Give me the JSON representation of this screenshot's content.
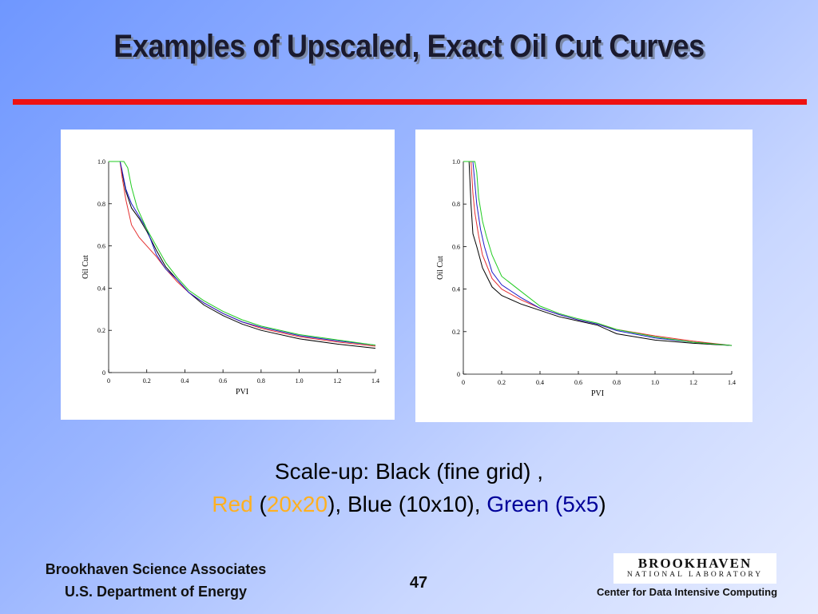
{
  "slide": {
    "title": "Examples of Upscaled,  Exact Oil Cut Curves",
    "caption_line1": "Scale-up:  Black (fine grid) ,",
    "caption_red": "Red",
    "caption_red_grid": "20x20",
    "caption_mid": "),  Blue (10x10),",
    "caption_green": "Green (5x5",
    "paren_open": "(",
    "paren_close": ")",
    "footer_org": "Brookhaven Science Associates",
    "footer_dept": "U.S. Department of Energy",
    "page_number": "47",
    "logo_main": "BROOKHAVEN",
    "logo_sub": "NATIONAL LABORATORY",
    "center_label": "Center for Data Intensive Computing"
  },
  "colors": {
    "rule": "#ee1111",
    "black_series": "#000000",
    "red_series": "#e53030",
    "blue_series": "#1c1cc8",
    "green_series": "#22cc22"
  },
  "chart_data": [
    {
      "type": "line",
      "xlabel": "PVI",
      "ylabel": "Oil Cut",
      "xlim": [
        0,
        1.4
      ],
      "ylim": [
        0,
        1.0
      ],
      "xticks": [
        "0",
        "0.2",
        "0.4",
        "0.6",
        "0.8",
        "1.0",
        "1.2",
        "1.4"
      ],
      "yticks": [
        "0",
        "0.2",
        "0.4",
        "0.6",
        "0.8",
        "1.0"
      ],
      "series": [
        {
          "name": "Black (fine grid)",
          "color": "#000000",
          "x": [
            0,
            0.06,
            0.07,
            0.09,
            0.12,
            0.16,
            0.2,
            0.25,
            0.3,
            0.36,
            0.42,
            0.5,
            0.6,
            0.7,
            0.8,
            1.0,
            1.2,
            1.4
          ],
          "y": [
            1.0,
            1.0,
            0.95,
            0.86,
            0.78,
            0.73,
            0.67,
            0.58,
            0.5,
            0.44,
            0.38,
            0.32,
            0.27,
            0.23,
            0.2,
            0.16,
            0.135,
            0.115
          ]
        },
        {
          "name": "Red (20x20)",
          "color": "#e53030",
          "x": [
            0,
            0.06,
            0.07,
            0.09,
            0.12,
            0.16,
            0.2,
            0.25,
            0.3,
            0.36,
            0.42,
            0.5,
            0.6,
            0.7,
            0.8,
            1.0,
            1.2,
            1.4
          ],
          "y": [
            1.0,
            1.0,
            0.93,
            0.82,
            0.7,
            0.64,
            0.6,
            0.55,
            0.49,
            0.43,
            0.38,
            0.33,
            0.28,
            0.24,
            0.21,
            0.17,
            0.145,
            0.125
          ]
        },
        {
          "name": "Blue (10x10)",
          "color": "#1c1cc8",
          "x": [
            0,
            0.06,
            0.07,
            0.09,
            0.12,
            0.16,
            0.2,
            0.25,
            0.3,
            0.36,
            0.42,
            0.5,
            0.6,
            0.7,
            0.8,
            1.0,
            1.2,
            1.4
          ],
          "y": [
            1.0,
            1.0,
            0.96,
            0.87,
            0.8,
            0.74,
            0.68,
            0.56,
            0.49,
            0.44,
            0.38,
            0.33,
            0.28,
            0.24,
            0.215,
            0.175,
            0.15,
            0.13
          ]
        },
        {
          "name": "Green (5x5)",
          "color": "#22cc22",
          "x": [
            0,
            0.08,
            0.1,
            0.12,
            0.15,
            0.2,
            0.25,
            0.3,
            0.36,
            0.42,
            0.5,
            0.6,
            0.7,
            0.8,
            1.0,
            1.2,
            1.4
          ],
          "y": [
            1.0,
            1.0,
            0.97,
            0.88,
            0.78,
            0.68,
            0.6,
            0.52,
            0.45,
            0.39,
            0.34,
            0.29,
            0.25,
            0.22,
            0.18,
            0.155,
            0.13
          ]
        }
      ]
    },
    {
      "type": "line",
      "xlabel": "PVI",
      "ylabel": "Oil Cut",
      "xlim": [
        0,
        1.4
      ],
      "ylim": [
        0,
        1.0
      ],
      "xticks": [
        "0",
        "0.2",
        "0.4",
        "0.6",
        "0.8",
        "1.0",
        "1.2",
        "1.4"
      ],
      "yticks": [
        "0",
        "0.2",
        "0.4",
        "0.6",
        "0.8",
        "1.0"
      ],
      "series": [
        {
          "name": "Black (fine grid)",
          "color": "#000000",
          "x": [
            0,
            0.03,
            0.04,
            0.05,
            0.07,
            0.1,
            0.15,
            0.2,
            0.3,
            0.4,
            0.5,
            0.6,
            0.7,
            0.8,
            1.0,
            1.2,
            1.4
          ],
          "y": [
            1.0,
            1.0,
            0.8,
            0.66,
            0.6,
            0.5,
            0.41,
            0.37,
            0.33,
            0.3,
            0.27,
            0.25,
            0.23,
            0.19,
            0.16,
            0.145,
            0.135
          ]
        },
        {
          "name": "Red (20x20)",
          "color": "#e53030",
          "x": [
            0,
            0.04,
            0.05,
            0.06,
            0.08,
            0.1,
            0.15,
            0.2,
            0.3,
            0.4,
            0.5,
            0.6,
            0.7,
            0.8,
            1.0,
            1.2,
            1.4
          ],
          "y": [
            1.0,
            1.0,
            0.85,
            0.76,
            0.65,
            0.56,
            0.45,
            0.4,
            0.35,
            0.31,
            0.28,
            0.255,
            0.235,
            0.21,
            0.18,
            0.155,
            0.135
          ]
        },
        {
          "name": "Blue (10x10)",
          "color": "#1c1cc8",
          "x": [
            0,
            0.05,
            0.06,
            0.07,
            0.09,
            0.11,
            0.15,
            0.2,
            0.3,
            0.4,
            0.5,
            0.6,
            0.7,
            0.8,
            1.0,
            1.2,
            1.4
          ],
          "y": [
            1.0,
            1.0,
            0.9,
            0.8,
            0.68,
            0.6,
            0.48,
            0.42,
            0.36,
            0.31,
            0.28,
            0.255,
            0.235,
            0.205,
            0.17,
            0.15,
            0.135
          ]
        },
        {
          "name": "Green (5x5)",
          "color": "#22cc22",
          "x": [
            0,
            0.06,
            0.07,
            0.08,
            0.1,
            0.12,
            0.15,
            0.2,
            0.3,
            0.4,
            0.5,
            0.6,
            0.7,
            0.8,
            1.0,
            1.2,
            1.4
          ],
          "y": [
            1.0,
            1.0,
            0.95,
            0.83,
            0.72,
            0.65,
            0.56,
            0.46,
            0.39,
            0.32,
            0.285,
            0.26,
            0.24,
            0.21,
            0.175,
            0.15,
            0.135
          ]
        }
      ]
    }
  ]
}
